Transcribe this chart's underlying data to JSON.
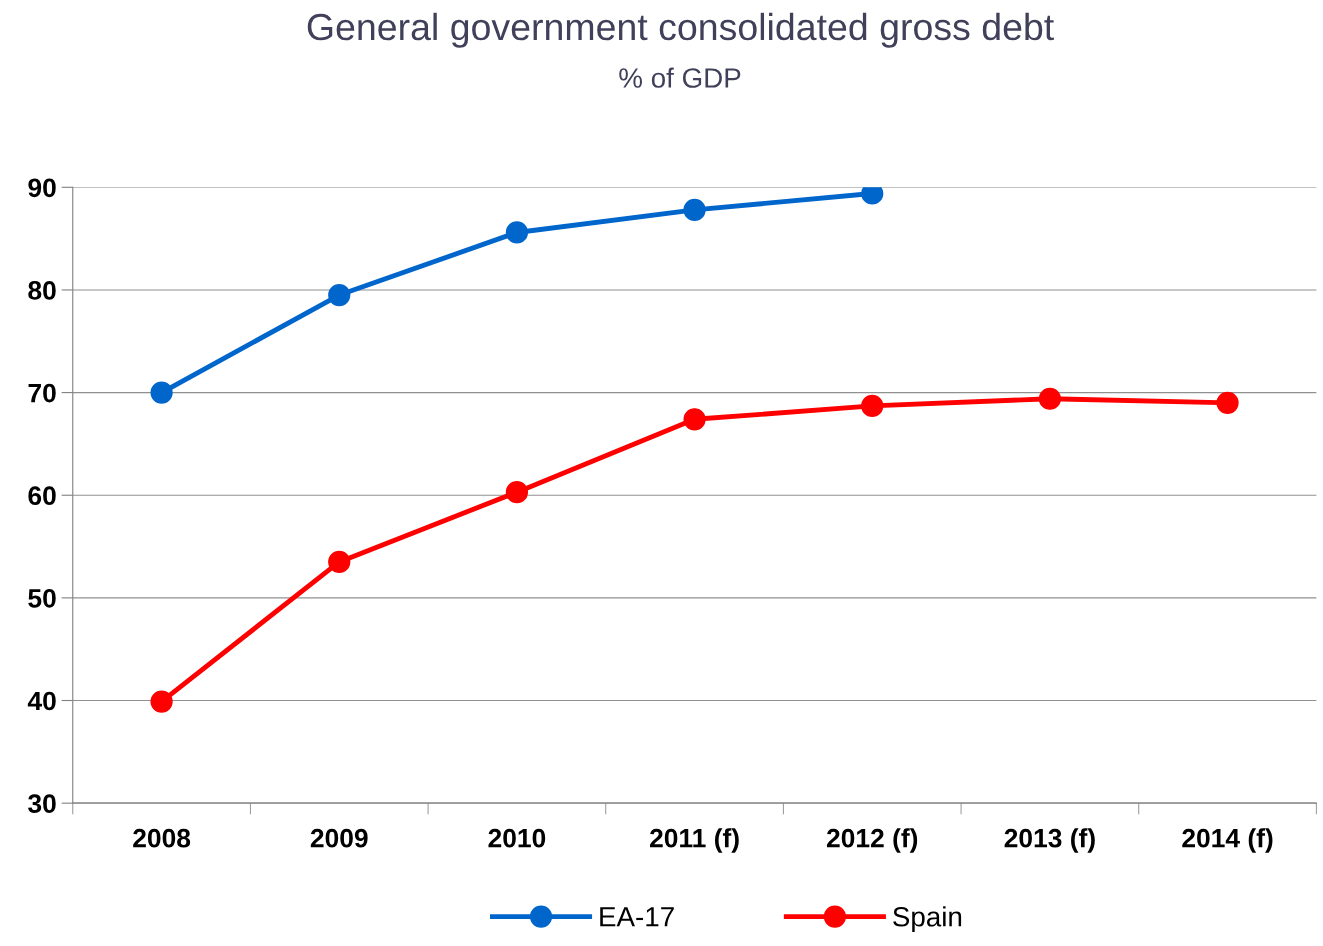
{
  "chart_data": {
    "type": "line",
    "title": "General government consolidated gross debt",
    "subtitle": "% of GDP",
    "categories": [
      "2008",
      "2009",
      "2010",
      "2011 (f)",
      "2012 (f)",
      "2013 (f)",
      "2014 (f)"
    ],
    "series": [
      {
        "name": "EA-17",
        "color": "#0066cc",
        "values": [
          70.0,
          79.5,
          85.6,
          87.8,
          89.4,
          null,
          null
        ]
      },
      {
        "name": "Spain",
        "color": "#ff0000",
        "values": [
          39.9,
          53.5,
          60.3,
          67.4,
          68.7,
          69.4,
          69.0
        ]
      }
    ],
    "ylim": [
      30,
      90
    ],
    "yticks": [
      30,
      40,
      50,
      60,
      70,
      80,
      90
    ],
    "grid": "y",
    "legend": "bottom",
    "marker": "circle",
    "line_style": "solid"
  }
}
